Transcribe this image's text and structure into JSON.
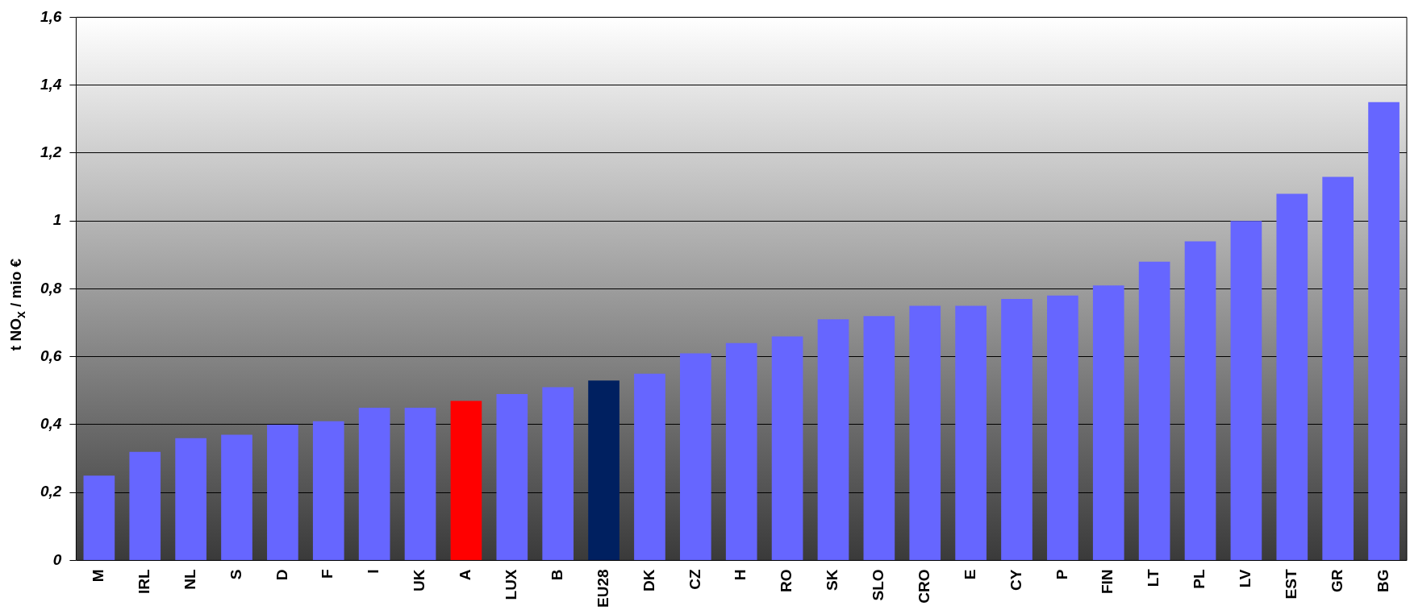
{
  "chart_data": {
    "type": "bar",
    "ylabel": "t NO$_{x}$ / mio €",
    "categories": [
      "M",
      "IRL",
      "NL",
      "S",
      "D",
      "F",
      "I",
      "UK",
      "A",
      "LUX",
      "B",
      "EU28",
      "DK",
      "CZ",
      "H",
      "RO",
      "SK",
      "SLO",
      "CRO",
      "E",
      "CY",
      "P",
      "FIN",
      "LT",
      "PL",
      "LV",
      "EST",
      "GR",
      "BG"
    ],
    "values": [
      0.25,
      0.32,
      0.36,
      0.37,
      0.4,
      0.41,
      0.45,
      0.45,
      0.47,
      0.49,
      0.51,
      0.53,
      0.55,
      0.61,
      0.64,
      0.66,
      0.71,
      0.72,
      0.75,
      0.75,
      0.77,
      0.78,
      0.81,
      0.88,
      0.94,
      1.0,
      1.08,
      1.13,
      1.35
    ],
    "colors": [
      "#6666ff",
      "#6666ff",
      "#6666ff",
      "#6666ff",
      "#6666ff",
      "#6666ff",
      "#6666ff",
      "#6666ff",
      "#ff0000",
      "#6666ff",
      "#6666ff",
      "#002060",
      "#6666ff",
      "#6666ff",
      "#6666ff",
      "#6666ff",
      "#6666ff",
      "#6666ff",
      "#6666ff",
      "#6666ff",
      "#6666ff",
      "#6666ff",
      "#6666ff",
      "#6666ff",
      "#6666ff",
      "#6666ff",
      "#6666ff",
      "#6666ff",
      "#6666ff"
    ],
    "ylim": [
      0,
      1.6
    ],
    "yticks": [
      0,
      {
        "value": 0.2,
        "label": "0,2"
      },
      {
        "value": 0.4,
        "label": "0,4"
      },
      {
        "value": 0.6,
        "label": "0,6"
      },
      {
        "value": 0.8,
        "label": "0,8"
      },
      1,
      {
        "value": 1.2,
        "label": "1,2"
      },
      {
        "value": 1.4,
        "label": "1,4"
      },
      {
        "value": 1.6,
        "label": "1,6"
      }
    ],
    "grid": "y",
    "legend": false
  }
}
